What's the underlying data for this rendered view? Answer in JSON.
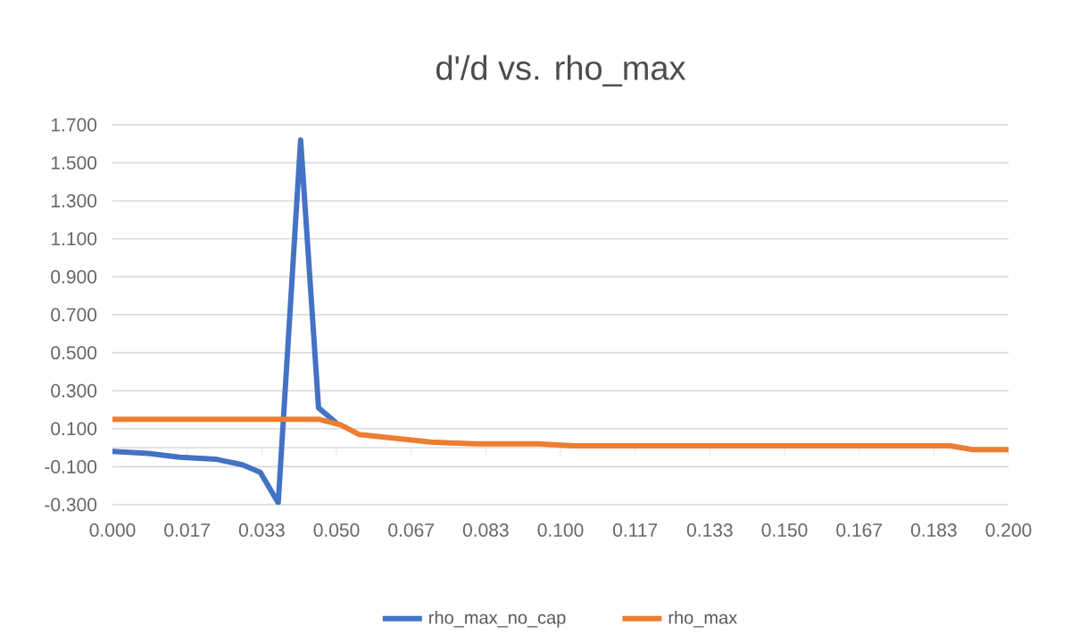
{
  "chart_data": {
    "type": "line",
    "title": "d'/d vs. rho_max",
    "series": [
      {
        "name": "rho_max_no_cap",
        "color": "#4472c4",
        "x": [
          0,
          0.008,
          0.015,
          0.023,
          0.029,
          0.033,
          0.037,
          0.042,
          0.046,
          0.05
        ],
        "values": [
          -0.02,
          -0.03,
          -0.05,
          -0.06,
          -0.09,
          -0.13,
          -0.29,
          1.62,
          0.21,
          0.13
        ]
      },
      {
        "name": "rho_max",
        "color": "#ed7d31",
        "x": [
          0,
          0.046,
          0.051,
          0.055,
          0.063,
          0.071,
          0.081,
          0.095,
          0.103,
          0.187,
          0.192,
          0.2
        ],
        "values": [
          0.15,
          0.15,
          0.12,
          0.07,
          0.05,
          0.03,
          0.02,
          0.02,
          0.01,
          0.01,
          -0.01,
          -0.01
        ]
      }
    ],
    "xlim": [
      0,
      0.2
    ],
    "xticks": [
      {
        "value": 0,
        "label": "0.000"
      },
      {
        "value": 0.016667,
        "label": "0.017"
      },
      {
        "value": 0.033333,
        "label": "0.033"
      },
      {
        "value": 0.05,
        "label": "0.050"
      },
      {
        "value": 0.066667,
        "label": "0.067"
      },
      {
        "value": 0.083333,
        "label": "0.083"
      },
      {
        "value": 0.1,
        "label": "0.100"
      },
      {
        "value": 0.116667,
        "label": "0.117"
      },
      {
        "value": 0.133333,
        "label": "0.133"
      },
      {
        "value": 0.15,
        "label": "0.150"
      },
      {
        "value": 0.166667,
        "label": "0.167"
      },
      {
        "value": 0.183333,
        "label": "0.183"
      },
      {
        "value": 0.2,
        "label": "0.200"
      }
    ],
    "ylim": [
      -0.3,
      1.7
    ],
    "yticks": [
      {
        "value": -0.3,
        "label": "-0.300"
      },
      {
        "value": -0.1,
        "label": "-0.100"
      },
      {
        "value": 0.1,
        "label": "0.100"
      },
      {
        "value": 0.3,
        "label": "0.300"
      },
      {
        "value": 0.5,
        "label": "0.500"
      },
      {
        "value": 0.7,
        "label": "0.700"
      },
      {
        "value": 0.9,
        "label": "0.900"
      },
      {
        "value": 1.1,
        "label": "1.100"
      },
      {
        "value": 1.3,
        "label": "1.300"
      },
      {
        "value": 1.5,
        "label": "1.500"
      },
      {
        "value": 1.7,
        "label": "1.700"
      }
    ],
    "grid": "y",
    "legend": "bottom",
    "marker": "none",
    "line_style": "solid"
  }
}
